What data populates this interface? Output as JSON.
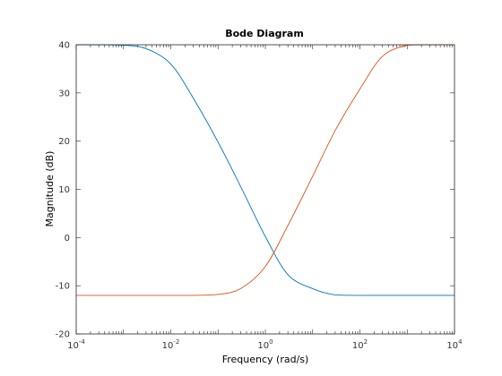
{
  "chart_data": {
    "type": "line",
    "title": "Bode Diagram",
    "xlabel": "Frequency  (rad/s)",
    "ylabel": "Magnitude (dB)",
    "xscale": "log",
    "xlim": [
      0.0001,
      10000
    ],
    "ylim": [
      -20,
      40
    ],
    "x_ticks": [
      {
        "base": "10",
        "exp": "-4",
        "value": 0.0001
      },
      {
        "base": "10",
        "exp": "-2",
        "value": 0.01
      },
      {
        "base": "10",
        "exp": "0",
        "value": 1
      },
      {
        "base": "10",
        "exp": "2",
        "value": 100
      },
      {
        "base": "10",
        "exp": "4",
        "value": 10000
      }
    ],
    "y_ticks": [
      "-20",
      "-10",
      "0",
      "10",
      "20",
      "30",
      "40"
    ],
    "grid": false,
    "legend": "none",
    "series": [
      {
        "color": "#0072bd",
        "x": [
          0.0001,
          0.0003,
          0.001,
          0.003,
          0.01,
          0.03,
          0.1,
          0.3,
          1,
          3,
          10,
          30,
          100,
          1000,
          10000
        ],
        "y": [
          40,
          40,
          39.9,
          39.2,
          36,
          28.9,
          19.8,
          10.6,
          0.2,
          -7.7,
          -10.6,
          -11.9,
          -12.0,
          -12.0,
          -12.0
        ]
      },
      {
        "color": "#d95319",
        "x": [
          0.0001,
          0.001,
          0.01,
          0.03,
          0.1,
          0.3,
          1,
          3,
          10,
          30,
          100,
          300,
          1000,
          3000,
          10000
        ],
        "y": [
          -12.0,
          -12.0,
          -12.0,
          -12.0,
          -11.8,
          -10.6,
          -6.0,
          2.5,
          12.7,
          22.2,
          30.8,
          37.6,
          39.9,
          40,
          40
        ]
      }
    ]
  }
}
